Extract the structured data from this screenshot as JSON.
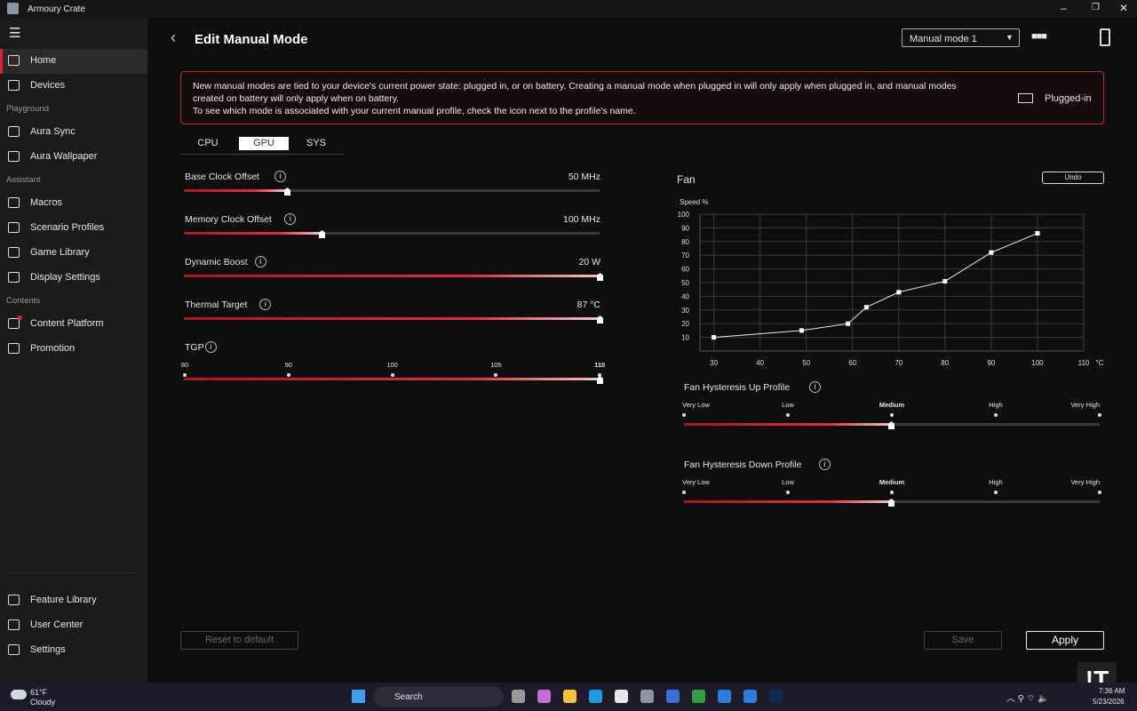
{
  "window": {
    "title": "Armoury Crate"
  },
  "sidebar": {
    "items": [
      "Home",
      "Devices"
    ],
    "sections": [
      {
        "title": "Playground",
        "items": [
          "Aura Sync",
          "Aura Wallpaper"
        ]
      },
      {
        "title": "Assistant",
        "items": [
          "Macros",
          "Scenario Profiles",
          "Game Library",
          "Display Settings"
        ]
      },
      {
        "title": "Contents",
        "items": [
          "Content Platform",
          "Promotion"
        ]
      }
    ],
    "bottom": [
      "Feature Library",
      "User Center",
      "Settings"
    ]
  },
  "header": {
    "title": "Edit Manual Mode",
    "mode_select": "Manual mode 1"
  },
  "notice": {
    "lines": [
      "New manual modes are tied to your device's current power state: plugged in, or on battery. Creating a manual mode when plugged in will only apply when plugged in, and manual modes",
      "created on battery will only apply when on battery.",
      "To see which mode is associated with your current manual profile, check the icon next to the profile's name."
    ],
    "power_state": "Plugged-in"
  },
  "tabs": [
    "CPU",
    "GPU",
    "SYS"
  ],
  "sliders": [
    {
      "label": "Base Clock Offset",
      "value": "50 MHz"
    },
    {
      "label": "Memory Clock Offset",
      "value": "100 MHz"
    },
    {
      "label": "Dynamic Boost",
      "value": "20 W"
    },
    {
      "label": "Thermal Target",
      "value": "87 °C"
    },
    {
      "label": "TGP",
      "ticks": [
        80,
        90,
        100,
        105,
        110
      ]
    }
  ],
  "fan": {
    "type": "line",
    "title": "Fan",
    "undo": "Undo",
    "y_label": "Speed %",
    "x_unit": "°C",
    "x": [
      30,
      49,
      59,
      63,
      70,
      80,
      90,
      100
    ],
    "values": [
      10,
      15,
      20,
      32,
      43,
      51,
      72,
      86
    ],
    "xlim": [
      27,
      110
    ],
    "ylim": [
      0,
      100
    ],
    "xticks": [
      30,
      40,
      50,
      60,
      70,
      80,
      90,
      100,
      110
    ],
    "yticks": [
      10,
      20,
      30,
      40,
      50,
      60,
      70,
      80,
      90,
      100
    ],
    "grid": true
  },
  "hysteresis": [
    {
      "title": "Fan Hysteresis Up Profile",
      "levels": [
        "Very Low",
        "Low",
        "Medium",
        "High",
        "Very High"
      ]
    },
    {
      "title": "Fan Hysteresis Down Profile",
      "levels": [
        "Very Low",
        "Low",
        "Medium",
        "High",
        "Very High"
      ]
    }
  ],
  "buttons": {
    "reset": "Reset to default",
    "save": "Save",
    "apply": "Apply"
  },
  "taskbar": {
    "temperature": "61°F",
    "weather": "Cloudy",
    "search": "Search",
    "time": "7:36 AM",
    "date": "5/23/2026"
  },
  "watermark": "!T"
}
